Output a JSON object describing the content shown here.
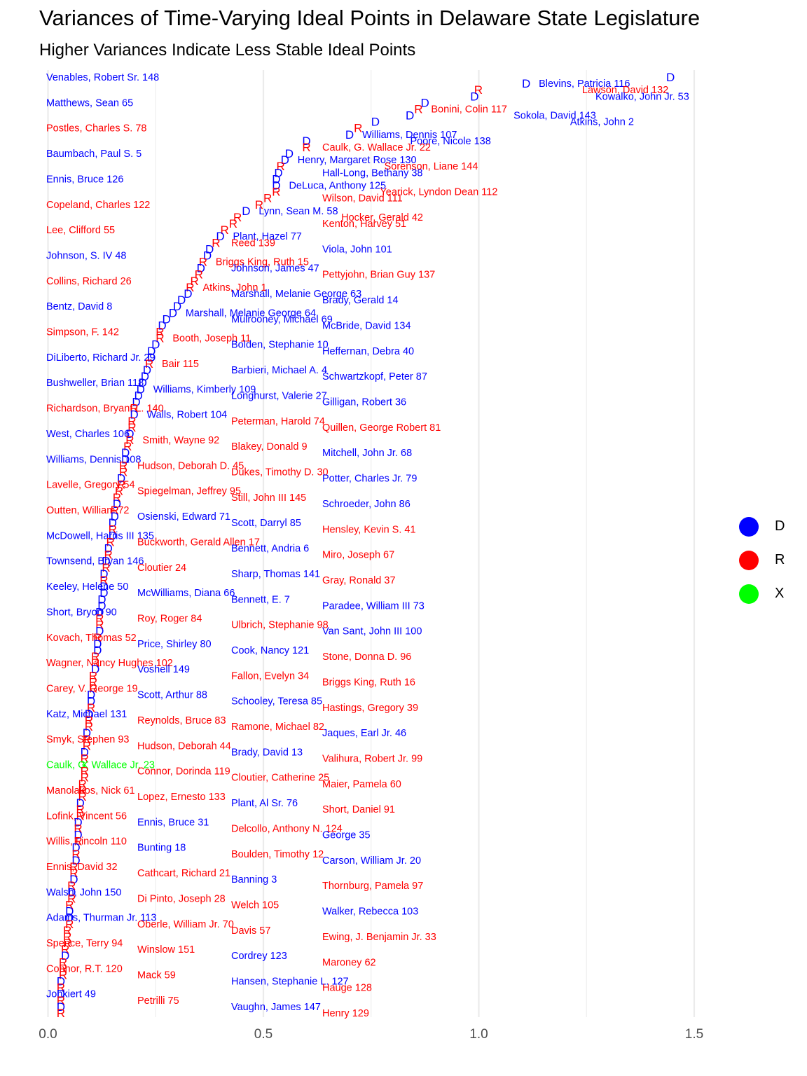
{
  "title": "Variances of Time-Varying Ideal Points in Delaware State Legislature",
  "subtitle": "Higher Variances Indicate Less Stable Ideal Points",
  "colors": {
    "D": "#0000ff",
    "R": "#ff0000",
    "X": "#00ff00",
    "grid": "#ebebeb",
    "axis_text": "#4d4d4d"
  },
  "chart_data": {
    "type": "scatter",
    "xlabel": "",
    "ylabel": "",
    "xlim": [
      -0.05,
      1.7
    ],
    "x_ticks": [
      0.0,
      0.5,
      1.0,
      1.5
    ],
    "x_tick_labels": [
      "0.0",
      "0.5",
      "1.0",
      "1.5"
    ],
    "grid": true,
    "legend": {
      "position": "right",
      "entries": [
        "D",
        "R",
        "X"
      ]
    },
    "points": [
      {
        "name": "Venables, Robert Sr. 148",
        "party": "D",
        "x": 1.445
      },
      {
        "name": "Blevins, Patricia 116",
        "party": "D",
        "x": 1.11
      },
      {
        "name": "Lawson, David 132",
        "party": "R",
        "x": 0.999
      },
      {
        "name": "Kowalko, John Jr. 53",
        "party": "D",
        "x": 0.99
      },
      {
        "name": "Matthews, Sean 65",
        "party": "D",
        "x": 0.875
      },
      {
        "name": "Bonini, Colin 117",
        "party": "R",
        "x": 0.86
      },
      {
        "name": "Sokola, David 143",
        "party": "D",
        "x": 0.84
      },
      {
        "name": "Atkins, John 2",
        "party": "D",
        "x": 0.76
      },
      {
        "name": "Postles, Charles S. 78",
        "party": "R",
        "x": 0.72
      },
      {
        "name": "Williams, Dennis 107",
        "party": "D",
        "x": 0.7
      },
      {
        "name": "Poore, Nicole 138",
        "party": "D",
        "x": 0.6
      },
      {
        "name": "Caulk, G. Wallace Jr. 22",
        "party": "R",
        "x": 0.6
      },
      {
        "name": "Baumbach, Paul S. 5",
        "party": "D",
        "x": 0.56
      },
      {
        "name": "Henry, Margaret Rose 130",
        "party": "D",
        "x": 0.55
      },
      {
        "name": "Sorenson, Liane 144",
        "party": "R",
        "x": 0.54
      },
      {
        "name": "Hall-Long, Bethany 38",
        "party": "D",
        "x": 0.535
      },
      {
        "name": "Ennis, Bruce 126",
        "party": "D",
        "x": 0.53
      },
      {
        "name": "DeLuca, Anthony 125",
        "party": "D",
        "x": 0.53
      },
      {
        "name": "Yearick, Lyndon Dean 112",
        "party": "R",
        "x": 0.53
      },
      {
        "name": "Wilson, David 111",
        "party": "R",
        "x": 0.51
      },
      {
        "name": "Copeland, Charles 122",
        "party": "R",
        "x": 0.49
      },
      {
        "name": "Lynn, Sean M. 58",
        "party": "D",
        "x": 0.46
      },
      {
        "name": "Hocker, Gerald 42",
        "party": "R",
        "x": 0.44
      },
      {
        "name": "Kenton, Harvey 51",
        "party": "R",
        "x": 0.43
      },
      {
        "name": "Lee, Clifford 55",
        "party": "R",
        "x": 0.41
      },
      {
        "name": "Plant, Hazel 77",
        "party": "D",
        "x": 0.4
      },
      {
        "name": "Reed 139",
        "party": "R",
        "x": 0.39
      },
      {
        "name": "Viola, John 101",
        "party": "D",
        "x": 0.375
      },
      {
        "name": "Johnson, S. IV 48",
        "party": "D",
        "x": 0.37
      },
      {
        "name": "Briggs King, Ruth 15",
        "party": "R",
        "x": 0.36
      },
      {
        "name": "Johnson, James 47",
        "party": "D",
        "x": 0.355
      },
      {
        "name": "Pettyjohn, Brian Guy 137",
        "party": "R",
        "x": 0.35
      },
      {
        "name": "Collins, Richard 26",
        "party": "R",
        "x": 0.34
      },
      {
        "name": "Atkins, John 1",
        "party": "R",
        "x": 0.33
      },
      {
        "name": "Marshall, Melanie George 63",
        "party": "D",
        "x": 0.325
      },
      {
        "name": "Brady, Gerald 14",
        "party": "D",
        "x": 0.31
      },
      {
        "name": "Bentz, David 8",
        "party": "D",
        "x": 0.3
      },
      {
        "name": "Marshall, Melanie George 64",
        "party": "D",
        "x": 0.29
      },
      {
        "name": "Mulrooney, Michael 69",
        "party": "D",
        "x": 0.275
      },
      {
        "name": "McBride, David 134",
        "party": "D",
        "x": 0.265
      },
      {
        "name": "Simpson, F. 142",
        "party": "R",
        "x": 0.26
      },
      {
        "name": "Booth, Joseph 11",
        "party": "R",
        "x": 0.26
      },
      {
        "name": "Bolden, Stephanie 10",
        "party": "D",
        "x": 0.25
      },
      {
        "name": "Heffernan, Debra 40",
        "party": "D",
        "x": 0.24
      },
      {
        "name": "DiLiberto, Richard Jr. 29",
        "party": "D",
        "x": 0.24
      },
      {
        "name": "Bair 115",
        "party": "R",
        "x": 0.235
      },
      {
        "name": "Barbieri, Michael A. 4",
        "party": "D",
        "x": 0.23
      },
      {
        "name": "Schwartzkopf, Peter 87",
        "party": "D",
        "x": 0.225
      },
      {
        "name": "Bushweller, Brian 118",
        "party": "D",
        "x": 0.22
      },
      {
        "name": "Williams, Kimberly 109",
        "party": "D",
        "x": 0.215
      },
      {
        "name": "Longhurst, Valerie 27",
        "party": "D",
        "x": 0.21
      },
      {
        "name": "Gilligan, Robert 36",
        "party": "D",
        "x": 0.205
      },
      {
        "name": "Richardson, Bryant L. 140",
        "party": "R",
        "x": 0.2
      },
      {
        "name": "Walls, Robert 104",
        "party": "D",
        "x": 0.2
      },
      {
        "name": "Peterman, Harold 74",
        "party": "R",
        "x": 0.195
      },
      {
        "name": "Quillen, George Robert 81",
        "party": "R",
        "x": 0.195
      },
      {
        "name": "West, Charles 106",
        "party": "D",
        "x": 0.19
      },
      {
        "name": "Smith, Wayne 92",
        "party": "R",
        "x": 0.19
      },
      {
        "name": "Blakey, Donald 9",
        "party": "R",
        "x": 0.185
      },
      {
        "name": "Mitchell, John Jr. 68",
        "party": "D",
        "x": 0.18
      },
      {
        "name": "Williams, Dennis 108",
        "party": "D",
        "x": 0.18
      },
      {
        "name": "Hudson, Deborah D. 45",
        "party": "R",
        "x": 0.175
      },
      {
        "name": "Dukes, Timothy D. 30",
        "party": "R",
        "x": 0.175
      },
      {
        "name": "Potter, Charles Jr. 79",
        "party": "D",
        "x": 0.17
      },
      {
        "name": "Lavelle, Gregory 54",
        "party": "R",
        "x": 0.17
      },
      {
        "name": "Spiegelman, Jeffrey 95",
        "party": "R",
        "x": 0.165
      },
      {
        "name": "Still, John III 145",
        "party": "R",
        "x": 0.16
      },
      {
        "name": "Schroeder, John 86",
        "party": "D",
        "x": 0.16
      },
      {
        "name": "Outten, William 72",
        "party": "R",
        "x": 0.155
      },
      {
        "name": "Osienski, Edward 71",
        "party": "D",
        "x": 0.155
      },
      {
        "name": "Scott, Darryl 85",
        "party": "D",
        "x": 0.15
      },
      {
        "name": "Hensley, Kevin S. 41",
        "party": "R",
        "x": 0.15
      },
      {
        "name": "McDowell, Harris III 135",
        "party": "D",
        "x": 0.15
      },
      {
        "name": "Buckworth, Gerald Allen 17",
        "party": "R",
        "x": 0.145
      },
      {
        "name": "Bennett, Andria 6",
        "party": "D",
        "x": 0.14
      },
      {
        "name": "Miro, Joseph 67",
        "party": "R",
        "x": 0.14
      },
      {
        "name": "Townsend, Bryan 146",
        "party": "D",
        "x": 0.135
      },
      {
        "name": "Cloutier 24",
        "party": "R",
        "x": 0.135
      },
      {
        "name": "Sharp, Thomas 141",
        "party": "D",
        "x": 0.13
      },
      {
        "name": "Gray, Ronald 37",
        "party": "R",
        "x": 0.13
      },
      {
        "name": "Keeley, Helene 50",
        "party": "D",
        "x": 0.13
      },
      {
        "name": "McWilliams, Diana 66",
        "party": "D",
        "x": 0.13
      },
      {
        "name": "Bennett, E. 7",
        "party": "D",
        "x": 0.125
      },
      {
        "name": "Paradee, William III 73",
        "party": "D",
        "x": 0.125
      },
      {
        "name": "Short, Bryon 90",
        "party": "D",
        "x": 0.12
      },
      {
        "name": "Roy, Roger 84",
        "party": "R",
        "x": 0.12
      },
      {
        "name": "Ulbrich, Stephanie 98",
        "party": "R",
        "x": 0.12
      },
      {
        "name": "Van Sant, John III 100",
        "party": "D",
        "x": 0.12
      },
      {
        "name": "Kovach, Thomas 52",
        "party": "R",
        "x": 0.115
      },
      {
        "name": "Price, Shirley 80",
        "party": "D",
        "x": 0.115
      },
      {
        "name": "Cook, Nancy 121",
        "party": "D",
        "x": 0.115
      },
      {
        "name": "Stone, Donna D. 96",
        "party": "R",
        "x": 0.11
      },
      {
        "name": "Wagner, Nancy Hughes 102",
        "party": "R",
        "x": 0.11
      },
      {
        "name": "Voshell 149",
        "party": "D",
        "x": 0.11
      },
      {
        "name": "Fallon, Evelyn 34",
        "party": "R",
        "x": 0.105
      },
      {
        "name": "Briggs King, Ruth 16",
        "party": "R",
        "x": 0.105
      },
      {
        "name": "Carey, V. George 19",
        "party": "R",
        "x": 0.105
      },
      {
        "name": "Scott, Arthur 88",
        "party": "D",
        "x": 0.1
      },
      {
        "name": "Schooley, Teresa 85",
        "party": "D",
        "x": 0.1
      },
      {
        "name": "Hastings, Gregory 39",
        "party": "R",
        "x": 0.1
      },
      {
        "name": "Katz, Michael 131",
        "party": "D",
        "x": 0.095
      },
      {
        "name": "Reynolds, Bruce 83",
        "party": "R",
        "x": 0.095
      },
      {
        "name": "Ramone, Michael 82",
        "party": "R",
        "x": 0.095
      },
      {
        "name": "Jaques, Earl Jr. 46",
        "party": "D",
        "x": 0.09
      },
      {
        "name": "Smyk, Stephen 93",
        "party": "R",
        "x": 0.09
      },
      {
        "name": "Hudson, Deborah 44",
        "party": "R",
        "x": 0.09
      },
      {
        "name": "Brady, David 13",
        "party": "D",
        "x": 0.085
      },
      {
        "name": "Valihura, Robert Jr. 99",
        "party": "R",
        "x": 0.085
      },
      {
        "name": "Caulk, G. Wallace Jr. 23",
        "party": "X",
        "x": 0.085
      },
      {
        "name": "Connor, Dorinda 119",
        "party": "R",
        "x": 0.085
      },
      {
        "name": "Cloutier, Catherine 25",
        "party": "R",
        "x": 0.085
      },
      {
        "name": "Maier, Pamela 60",
        "party": "R",
        "x": 0.08
      },
      {
        "name": "Manolakos, Nick 61",
        "party": "R",
        "x": 0.08
      },
      {
        "name": "Lopez, Ernesto 133",
        "party": "R",
        "x": 0.08
      },
      {
        "name": "Plant, Al Sr. 76",
        "party": "D",
        "x": 0.075
      },
      {
        "name": "Short, Daniel 91",
        "party": "R",
        "x": 0.075
      },
      {
        "name": "Lofink, Vincent 56",
        "party": "R",
        "x": 0.075
      },
      {
        "name": "Ennis, Bruce 31",
        "party": "D",
        "x": 0.07
      },
      {
        "name": "Delcollo, Anthony N. 124",
        "party": "R",
        "x": 0.07
      },
      {
        "name": "George 35",
        "party": "D",
        "x": 0.07
      },
      {
        "name": "Willis, Lincoln 110",
        "party": "R",
        "x": 0.07
      },
      {
        "name": "Bunting 18",
        "party": "D",
        "x": 0.065
      },
      {
        "name": "Boulden, Timothy 12",
        "party": "R",
        "x": 0.065
      },
      {
        "name": "Carson, William Jr. 20",
        "party": "D",
        "x": 0.065
      },
      {
        "name": "Ennis, David 32",
        "party": "R",
        "x": 0.06
      },
      {
        "name": "Cathcart, Richard 21",
        "party": "R",
        "x": 0.06
      },
      {
        "name": "Banning 3",
        "party": "D",
        "x": 0.06
      },
      {
        "name": "Thornburg, Pamela 97",
        "party": "R",
        "x": 0.055
      },
      {
        "name": "Walsh, John 150",
        "party": "D",
        "x": 0.055
      },
      {
        "name": "Di Pinto, Joseph 28",
        "party": "R",
        "x": 0.055
      },
      {
        "name": "Welch 105",
        "party": "R",
        "x": 0.05
      },
      {
        "name": "Walker, Rebecca 103",
        "party": "D",
        "x": 0.05
      },
      {
        "name": "Adams, Thurman Jr. 113",
        "party": "D",
        "x": 0.05
      },
      {
        "name": "Oberle, William Jr. 70",
        "party": "R",
        "x": 0.05
      },
      {
        "name": "Davis 57",
        "party": "R",
        "x": 0.045
      },
      {
        "name": "Ewing, J. Benjamin Jr. 33",
        "party": "R",
        "x": 0.045
      },
      {
        "name": "Spence, Terry 94",
        "party": "R",
        "x": 0.045
      },
      {
        "name": "Winslow 151",
        "party": "R",
        "x": 0.04
      },
      {
        "name": "Cordrey 123",
        "party": "D",
        "x": 0.04
      },
      {
        "name": "Maroney 62",
        "party": "R",
        "x": 0.035
      },
      {
        "name": "Connor, R.T. 120",
        "party": "R",
        "x": 0.035
      },
      {
        "name": "Mack 59",
        "party": "R",
        "x": 0.035
      },
      {
        "name": "Hansen, Stephanie L. 127",
        "party": "D",
        "x": 0.03
      },
      {
        "name": "Hauge 128",
        "party": "R",
        "x": 0.03
      },
      {
        "name": "Jonkiert 49",
        "party": "D",
        "x": 0.03
      },
      {
        "name": "Petrilli 75",
        "party": "R",
        "x": 0.03
      },
      {
        "name": "Vaughn, James 147",
        "party": "D",
        "x": 0.03
      },
      {
        "name": "Henry 129",
        "party": "R",
        "x": 0.03
      }
    ]
  }
}
